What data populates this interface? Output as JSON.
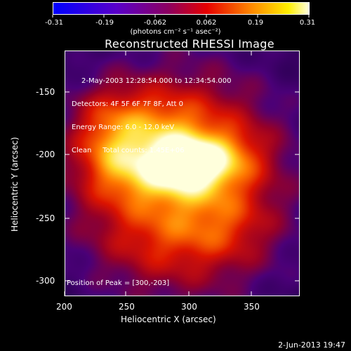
{
  "colorbar": {
    "tick_labels": [
      "-0.31",
      "-0.19",
      "-0.062",
      "0.062",
      "0.19",
      "0.31"
    ],
    "units_label": "(photons cm⁻² s⁻¹ asec⁻²)",
    "min": -0.31,
    "max": 0.31,
    "colormap": "blue-purple-red-yellow-white (RHESSI color table)"
  },
  "plot": {
    "title": "Reconstructed RHESSI Image",
    "info_lines": [
      "2-May-2003 12:28:54.000 to 12:34:54.000",
      "Detectors: 4F 5F 6F 7F 8F, Att 0",
      "Energy Range: 6.0 - 12.0 keV",
      "Clean     Total counts: 1.45E+06"
    ],
    "peak_text": "Position of Peak = [300,-203]",
    "xlabel": "Heliocentric X (arcsec)",
    "ylabel": "Heliocentric Y (arcsec)",
    "x_ticks": [
      "200",
      "250",
      "300",
      "350"
    ],
    "y_ticks": [
      "-150",
      "-200",
      "-250",
      "-300"
    ],
    "xlim": [
      193,
      386
    ],
    "ylim": [
      -313,
      -110
    ]
  },
  "timestamp": "2-Jun-2013 19:47"
}
